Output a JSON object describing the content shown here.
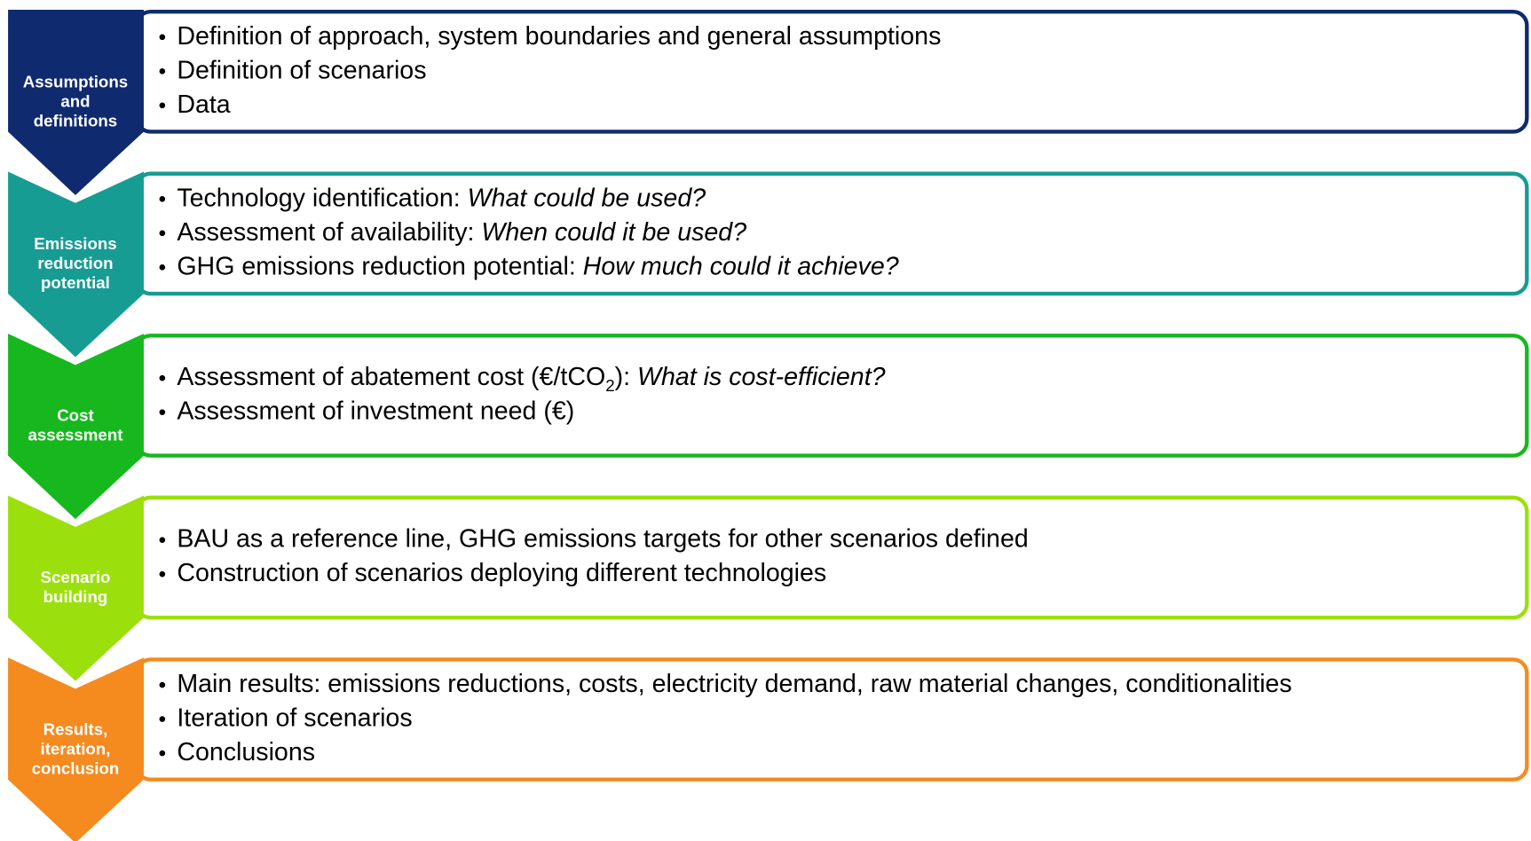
{
  "steps": [
    {
      "label": [
        "Assumptions",
        "and",
        "definitions"
      ],
      "color": "#0f2a6e",
      "bullets": [
        [
          {
            "text": "Definition of approach, system boundaries and general assumptions"
          }
        ],
        [
          {
            "text": "Definition of scenarios"
          }
        ],
        [
          {
            "text": "Data"
          }
        ]
      ]
    },
    {
      "label": [
        "Emissions",
        "reduction",
        "potential"
      ],
      "color": "#179c94",
      "bullets": [
        [
          {
            "text": "Technology identification: "
          },
          {
            "text": "What could be used?",
            "italic": true
          }
        ],
        [
          {
            "text": "Assessment of availability: "
          },
          {
            "text": "When could it be used?",
            "italic": true
          }
        ],
        [
          {
            "text": "GHG emissions reduction potential: "
          },
          {
            "text": "How much could it achieve?",
            "italic": true
          }
        ]
      ]
    },
    {
      "label": [
        "Cost",
        "assessment"
      ],
      "color": "#16b81e",
      "bullets": [
        [
          {
            "text": "Assessment of abatement cost (€/tCO"
          },
          {
            "text": "2",
            "sub": true
          },
          {
            "text": "): "
          },
          {
            "text": "What is cost-efficient?",
            "italic": true
          }
        ],
        [
          {
            "text": "Assessment of investment need (€)"
          }
        ]
      ]
    },
    {
      "label": [
        "Scenario",
        "building"
      ],
      "color": "#9be00c",
      "bullets": [
        [
          {
            "text": "BAU as a reference line, GHG emissions targets for other scenarios defined"
          }
        ],
        [
          {
            "text": "Construction of scenarios deploying different technologies"
          }
        ]
      ]
    },
    {
      "label": [
        "Results,",
        "iteration,",
        "conclusion"
      ],
      "color": "#f58a1e",
      "bullets": [
        [
          {
            "text": "Main results: emissions reductions, costs, electricity demand, raw material changes, conditionalities"
          }
        ],
        [
          {
            "text": "Iteration of scenarios"
          }
        ],
        [
          {
            "text": "Conclusions"
          }
        ]
      ]
    }
  ]
}
